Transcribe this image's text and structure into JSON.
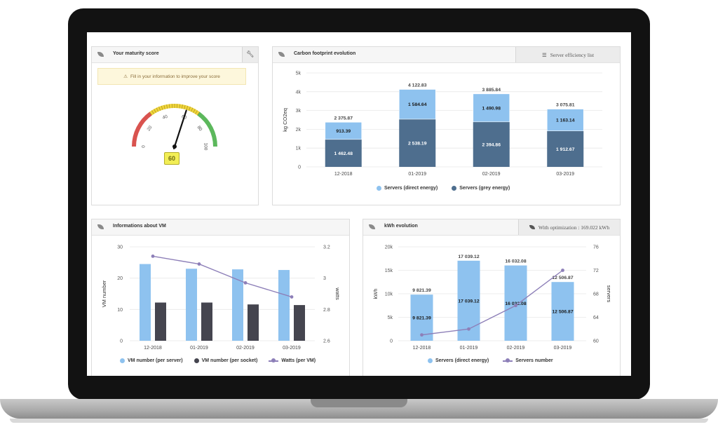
{
  "maturity": {
    "title": "Your maturity score",
    "alert": "Fill in your information to improve your score",
    "gauge_value": 60,
    "gauge_label": "60",
    "ticks": [
      "0",
      "20",
      "40",
      "60",
      "80",
      "100"
    ]
  },
  "carbon": {
    "title": "Carbon footprint evolution",
    "button_label": "Server efficiency list"
  },
  "vm": {
    "title": "Informations about VM"
  },
  "kwh": {
    "title": "kWh evolution",
    "button_label": "With optimization : 169.022 kWh"
  },
  "chart_data": [
    {
      "id": "carbon",
      "type": "bar",
      "stacked": true,
      "categories": [
        "12-2018",
        "01-2019",
        "02-2019",
        "03-2019"
      ],
      "series": [
        {
          "name": "Servers (direct energy)",
          "values": [
            913.39,
            1584.64,
            1490.98,
            1163.14
          ],
          "labels": [
            "913.39",
            "1 584.64",
            "1 490.98",
            "1 163.14"
          ],
          "color": "#8ec2ef"
        },
        {
          "name": "Servers (grey energy)",
          "values": [
            1462.48,
            2538.19,
            2394.86,
            1912.67
          ],
          "labels": [
            "1 462.48",
            "2 538.19",
            "2 394.86",
            "1 912.67"
          ],
          "color": "#4e6e8e"
        }
      ],
      "totals": [
        "2 375.87",
        "4 122.83",
        "3 885.84",
        "3 075.81"
      ],
      "ylabel": "kg CO2eq",
      "yticks": [
        "0",
        "1k",
        "2k",
        "3k",
        "4k",
        "5k"
      ],
      "ylim": [
        0,
        5000
      ],
      "legend": "bottom"
    },
    {
      "id": "vm",
      "type": "bar",
      "categories": [
        "12-2018",
        "01-2019",
        "02-2019",
        "03-2019"
      ],
      "series": [
        {
          "name": "VM number (per server)",
          "values": [
            24.5,
            23,
            22.8,
            22.6
          ],
          "color": "#8ec2ef",
          "axis": "left"
        },
        {
          "name": "VM number (per socket)",
          "values": [
            12.2,
            12.2,
            11.6,
            11.4
          ],
          "color": "#45454f",
          "axis": "left"
        },
        {
          "name": "Watts (per VM)",
          "values": [
            3.14,
            3.09,
            2.97,
            2.88
          ],
          "color": "#8d7fb8",
          "axis": "right",
          "type": "line"
        }
      ],
      "ylabel": "VM number",
      "y2label": "watts",
      "yticks": [
        "0",
        "10",
        "20",
        "30"
      ],
      "ylim": [
        0,
        30
      ],
      "y2ticks": [
        "2.6",
        "2.8",
        "3",
        "3.2"
      ],
      "y2lim": [
        2.6,
        3.2
      ],
      "legend": "bottom"
    },
    {
      "id": "kwh",
      "type": "bar",
      "categories": [
        "12-2018",
        "01-2019",
        "02-2019",
        "03-2019"
      ],
      "series": [
        {
          "name": "Servers (direct energy)",
          "values": [
            9821.39,
            17039.12,
            16032.08,
            12506.87
          ],
          "labels": [
            "9 821.39",
            "17 039.12",
            "16 032.08",
            "12 506.87"
          ],
          "color": "#8ec2ef",
          "axis": "left"
        },
        {
          "name": "Servers number",
          "values": [
            61,
            62,
            66,
            72
          ],
          "color": "#8d7fb8",
          "axis": "right",
          "type": "line"
        }
      ],
      "ylabel": "kWh",
      "y2label": "servers",
      "yticks": [
        "0",
        "5k",
        "10k",
        "15k",
        "20k"
      ],
      "ylim": [
        0,
        20000
      ],
      "y2ticks": [
        "60",
        "64",
        "68",
        "72",
        "76"
      ],
      "y2lim": [
        60,
        76
      ],
      "legend": "bottom"
    }
  ]
}
